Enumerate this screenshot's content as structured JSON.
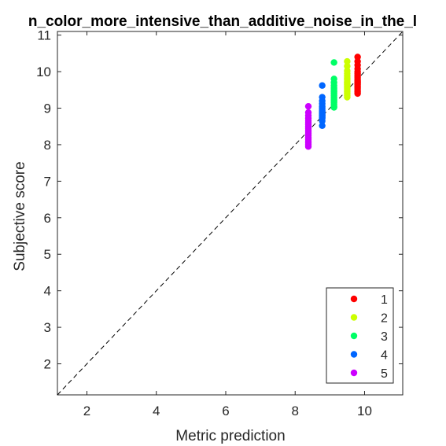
{
  "chart_data": {
    "type": "scatter",
    "title": "n_color_more_intensive_than_additive_noise_in_the_l",
    "xlabel": "Metric prediction",
    "ylabel": "Subjective score",
    "xlim": [
      1.15,
      11.1
    ],
    "ylim": [
      1.15,
      11.1
    ],
    "xticks": [
      2,
      4,
      6,
      8,
      10
    ],
    "yticks": [
      2,
      3,
      4,
      5,
      6,
      7,
      8,
      9,
      10,
      11
    ],
    "grid": false,
    "reference_line": "y = x (dashed)",
    "legend_position": "bottom-right",
    "series": [
      {
        "name": "1",
        "color": "#ff0000",
        "x": [
          9.8,
          9.8,
          9.8,
          9.8,
          9.8,
          9.8,
          9.8,
          9.8,
          9.8,
          9.8,
          9.8,
          9.8,
          9.8,
          9.8,
          9.8,
          9.8,
          9.8,
          9.8
        ],
        "y": [
          10.4,
          10.28,
          10.18,
          10.08,
          10.0,
          9.95,
          9.9,
          9.85,
          9.8,
          9.75,
          9.72,
          9.68,
          9.65,
          9.6,
          9.55,
          9.5,
          9.45,
          9.4
        ]
      },
      {
        "name": "2",
        "color": "#ccff00",
        "x": [
          9.5,
          9.5,
          9.5,
          9.5,
          9.5,
          9.5,
          9.5,
          9.5,
          9.5,
          9.5,
          9.5,
          9.5,
          9.5,
          9.5,
          9.5,
          9.5,
          9.5
        ],
        "y": [
          10.28,
          10.15,
          10.02,
          9.95,
          9.88,
          9.82,
          9.78,
          9.72,
          9.68,
          9.65,
          9.6,
          9.55,
          9.5,
          9.45,
          9.4,
          9.35,
          9.3
        ]
      },
      {
        "name": "3",
        "color": "#00ff66",
        "x": [
          9.12,
          9.12,
          9.12,
          9.12,
          9.12,
          9.12,
          9.12,
          9.12,
          9.12,
          9.12,
          9.12,
          9.12,
          9.12,
          9.12,
          9.12,
          9.12
        ],
        "y": [
          10.25,
          9.8,
          9.7,
          9.62,
          9.55,
          9.5,
          9.45,
          9.4,
          9.35,
          9.3,
          9.25,
          9.2,
          9.15,
          9.1,
          9.05,
          9.02
        ]
      },
      {
        "name": "4",
        "color": "#0066ff",
        "x": [
          8.78,
          8.78,
          8.78,
          8.78,
          8.78,
          8.78,
          8.78,
          8.78,
          8.78,
          8.78,
          8.78,
          8.78,
          8.78,
          8.78,
          8.78,
          8.78,
          8.78
        ],
        "y": [
          9.62,
          9.3,
          9.2,
          9.12,
          9.05,
          9.0,
          8.95,
          8.92,
          8.88,
          8.85,
          8.82,
          8.8,
          8.78,
          8.75,
          8.72,
          8.65,
          8.52
        ]
      },
      {
        "name": "5",
        "color": "#cc00ff",
        "x": [
          8.38,
          8.38,
          8.38,
          8.38,
          8.38,
          8.38,
          8.38,
          8.38,
          8.38,
          8.38,
          8.38,
          8.38,
          8.38,
          8.38,
          8.38,
          8.38,
          8.38,
          8.38,
          8.38
        ],
        "y": [
          9.05,
          8.88,
          8.8,
          8.72,
          8.65,
          8.6,
          8.55,
          8.5,
          8.45,
          8.4,
          8.35,
          8.3,
          8.25,
          8.2,
          8.15,
          8.1,
          8.05,
          8.0,
          7.95
        ]
      }
    ]
  }
}
